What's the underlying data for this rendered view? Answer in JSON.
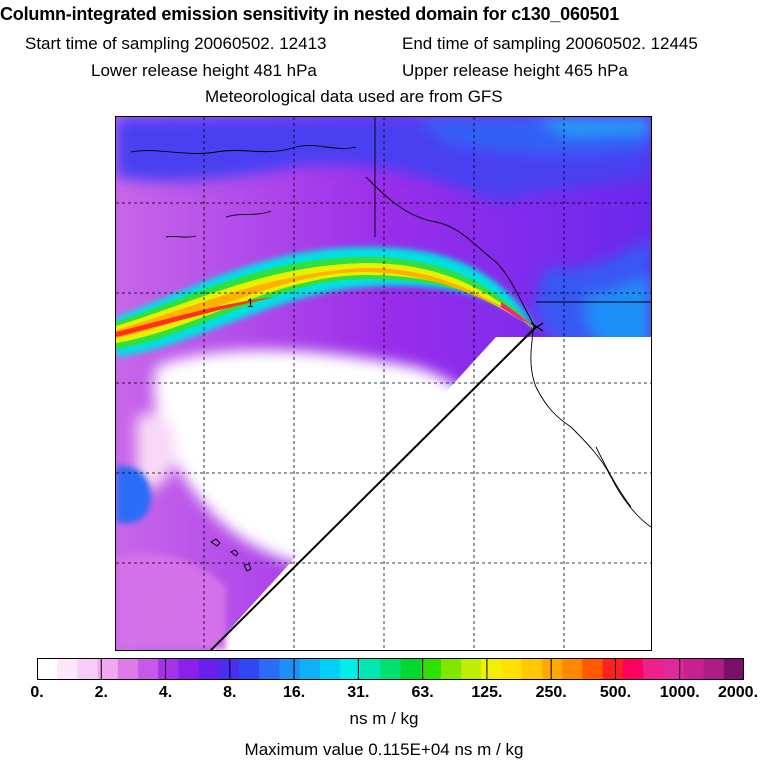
{
  "header": {
    "title": "Column-integrated emission sensitivity in nested domain for c130_060501",
    "start_time": "Start time of sampling 20060502. 12413",
    "end_time": "End time of sampling 20060502. 12445",
    "lower_release": "Lower release height  481 hPa",
    "upper_release": "Upper release height  465 hPa",
    "met_data": "Meteorological data used are from GFS"
  },
  "map": {
    "plume_label": "1",
    "release_marker": "release-point-marker"
  },
  "colorbar": {
    "tick_labels": [
      "0.",
      "2.",
      "4.",
      "8.",
      "16.",
      "31.",
      "63.",
      "125.",
      "250.",
      "500.",
      "1000.",
      "2000."
    ],
    "colors": [
      "#ffffff",
      "#fde8fb",
      "#f8ccf5",
      "#f0a8ee",
      "#dd7ae8",
      "#c858ea",
      "#a632e8",
      "#8a20ea",
      "#6a20ec",
      "#4a2ef0",
      "#3048f4",
      "#2a6cf6",
      "#1e8ef8",
      "#10b0f8",
      "#00d0f8",
      "#00eee6",
      "#00e8b0",
      "#00e070",
      "#00d830",
      "#30e000",
      "#80e800",
      "#c0ee00",
      "#f0f000",
      "#ffe000",
      "#ffc800",
      "#ffa800",
      "#ff8800",
      "#ff5a00",
      "#ff2020",
      "#ff0060",
      "#f0208a",
      "#e0289a",
      "#c82090",
      "#b01c86",
      "#7a106a"
    ],
    "unit": "ns m / kg",
    "maximum": "Maximum value  0.115E+04 ns m / kg"
  }
}
